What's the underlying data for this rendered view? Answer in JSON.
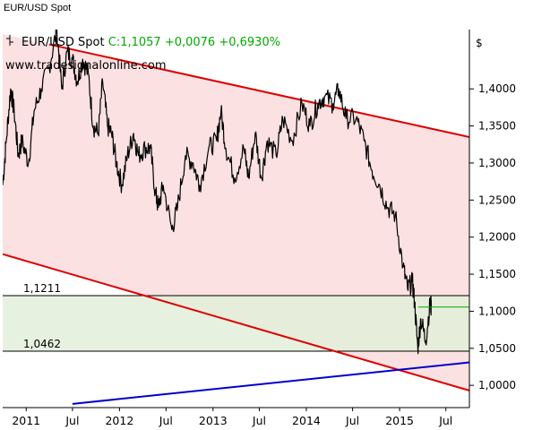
{
  "window_title": "EUR/USD Spot",
  "watermark": "www.tradesignalonline.com",
  "legend": {
    "symbol": "EUR/USD Spot",
    "close_label": "C:1,1057 +0,0076 +0,6930%",
    "close_color": "#00aa00"
  },
  "currency_symbol": "$",
  "colors": {
    "price": "#000000",
    "channel": "#dd0000",
    "support": "#0000cc",
    "range_band": "#e3efd9",
    "channel_fill": "#fbe1e1",
    "last_price_line": "#00aa00"
  },
  "chart_data": {
    "type": "line",
    "title": "EUR/USD Spot",
    "x_axis": {
      "range": [
        "2010-10-01",
        "2015-10-01"
      ],
      "ticks": [
        {
          "date": "2011-01-01",
          "label": "2011"
        },
        {
          "date": "2011-07-01",
          "label": "Jul"
        },
        {
          "date": "2012-01-01",
          "label": "2012"
        },
        {
          "date": "2012-07-01",
          "label": "Jul"
        },
        {
          "date": "2013-01-01",
          "label": "2013"
        },
        {
          "date": "2013-07-01",
          "label": "Jul"
        },
        {
          "date": "2014-01-01",
          "label": "2014"
        },
        {
          "date": "2014-07-01",
          "label": "Jul"
        },
        {
          "date": "2015-01-01",
          "label": "2015"
        },
        {
          "date": "2015-07-01",
          "label": "Jul"
        }
      ]
    },
    "y_axis": {
      "range": [
        0.97,
        1.48
      ],
      "position": "right",
      "ticks": [
        "1,0000",
        "1,0500",
        "1,1000",
        "1,1500",
        "1,2000",
        "1,2500",
        "1,3000",
        "1,3500",
        "1,4000"
      ],
      "tick_values": [
        1.0,
        1.05,
        1.1,
        1.15,
        1.2,
        1.25,
        1.3,
        1.35,
        1.4
      ]
    },
    "horizontal_levels": [
      {
        "value": 1.1211,
        "label": "1,1211"
      },
      {
        "value": 1.0462,
        "label": "1,0462"
      }
    ],
    "last_close": {
      "value": 1.1057,
      "from": "2015-03-15"
    },
    "trend_lines": [
      {
        "name": "",
        "role": "channel-top",
        "points": [
          [
            "2011-04-01",
            1.46
          ],
          [
            "2015-10-01",
            1.335
          ]
        ]
      },
      {
        "name": "",
        "role": "channel-bottom",
        "points": [
          [
            "2010-10-01",
            1.177
          ],
          [
            "2015-10-01",
            0.993
          ]
        ]
      },
      {
        "name": "",
        "role": "support",
        "points": [
          [
            "2011-07-01",
            0.975
          ],
          [
            "2015-10-01",
            1.031
          ]
        ]
      }
    ],
    "series": [
      {
        "name": "EUR/USD Spot",
        "points": [
          [
            "2010-10-01",
            1.27
          ],
          [
            "2010-10-15",
            1.33
          ],
          [
            "2010-11-01",
            1.4
          ],
          [
            "2010-11-15",
            1.37
          ],
          [
            "2010-12-01",
            1.31
          ],
          [
            "2010-12-15",
            1.33
          ],
          [
            "2011-01-10",
            1.3
          ],
          [
            "2011-02-01",
            1.37
          ],
          [
            "2011-03-01",
            1.4
          ],
          [
            "2011-04-01",
            1.43
          ],
          [
            "2011-05-01",
            1.48
          ],
          [
            "2011-05-20",
            1.4
          ],
          [
            "2011-06-10",
            1.45
          ],
          [
            "2011-07-01",
            1.44
          ],
          [
            "2011-07-20",
            1.41
          ],
          [
            "2011-08-10",
            1.44
          ],
          [
            "2011-09-01",
            1.42
          ],
          [
            "2011-09-20",
            1.35
          ],
          [
            "2011-10-10",
            1.34
          ],
          [
            "2011-10-27",
            1.41
          ],
          [
            "2011-11-15",
            1.35
          ],
          [
            "2011-12-01",
            1.34
          ],
          [
            "2011-12-20",
            1.3
          ],
          [
            "2012-01-10",
            1.27
          ],
          [
            "2012-02-01",
            1.31
          ],
          [
            "2012-02-25",
            1.34
          ],
          [
            "2012-03-15",
            1.31
          ],
          [
            "2012-04-10",
            1.32
          ],
          [
            "2012-05-01",
            1.32
          ],
          [
            "2012-05-20",
            1.26
          ],
          [
            "2012-06-01",
            1.24
          ],
          [
            "2012-06-20",
            1.27
          ],
          [
            "2012-07-24",
            1.21
          ],
          [
            "2012-08-15",
            1.24
          ],
          [
            "2012-09-15",
            1.31
          ],
          [
            "2012-10-15",
            1.3
          ],
          [
            "2012-11-10",
            1.27
          ],
          [
            "2012-12-15",
            1.32
          ],
          [
            "2013-01-15",
            1.33
          ],
          [
            "2013-02-01",
            1.37
          ],
          [
            "2013-02-20",
            1.32
          ],
          [
            "2013-03-27",
            1.28
          ],
          [
            "2013-05-01",
            1.32
          ],
          [
            "2013-05-20",
            1.28
          ],
          [
            "2013-06-15",
            1.34
          ],
          [
            "2013-07-09",
            1.28
          ],
          [
            "2013-08-01",
            1.33
          ],
          [
            "2013-09-05",
            1.31
          ],
          [
            "2013-10-01",
            1.36
          ],
          [
            "2013-11-07",
            1.33
          ],
          [
            "2013-12-15",
            1.38
          ],
          [
            "2014-01-15",
            1.35
          ],
          [
            "2014-02-15",
            1.38
          ],
          [
            "2014-03-13",
            1.39
          ],
          [
            "2014-04-15",
            1.38
          ],
          [
            "2014-05-08",
            1.4
          ],
          [
            "2014-06-05",
            1.36
          ],
          [
            "2014-07-15",
            1.36
          ],
          [
            "2014-08-15",
            1.33
          ],
          [
            "2014-09-15",
            1.29
          ],
          [
            "2014-10-15",
            1.27
          ],
          [
            "2014-11-15",
            1.24
          ],
          [
            "2014-12-15",
            1.23
          ],
          [
            "2015-01-15",
            1.16
          ],
          [
            "2015-02-01",
            1.13
          ],
          [
            "2015-02-20",
            1.14
          ],
          [
            "2015-03-01",
            1.11
          ],
          [
            "2015-03-13",
            1.05
          ],
          [
            "2015-03-25",
            1.09
          ],
          [
            "2015-04-13",
            1.06
          ],
          [
            "2015-04-30",
            1.11
          ],
          [
            "2015-05-05",
            1.1057
          ]
        ]
      }
    ],
    "grid": false,
    "legend_position": "top-left"
  }
}
